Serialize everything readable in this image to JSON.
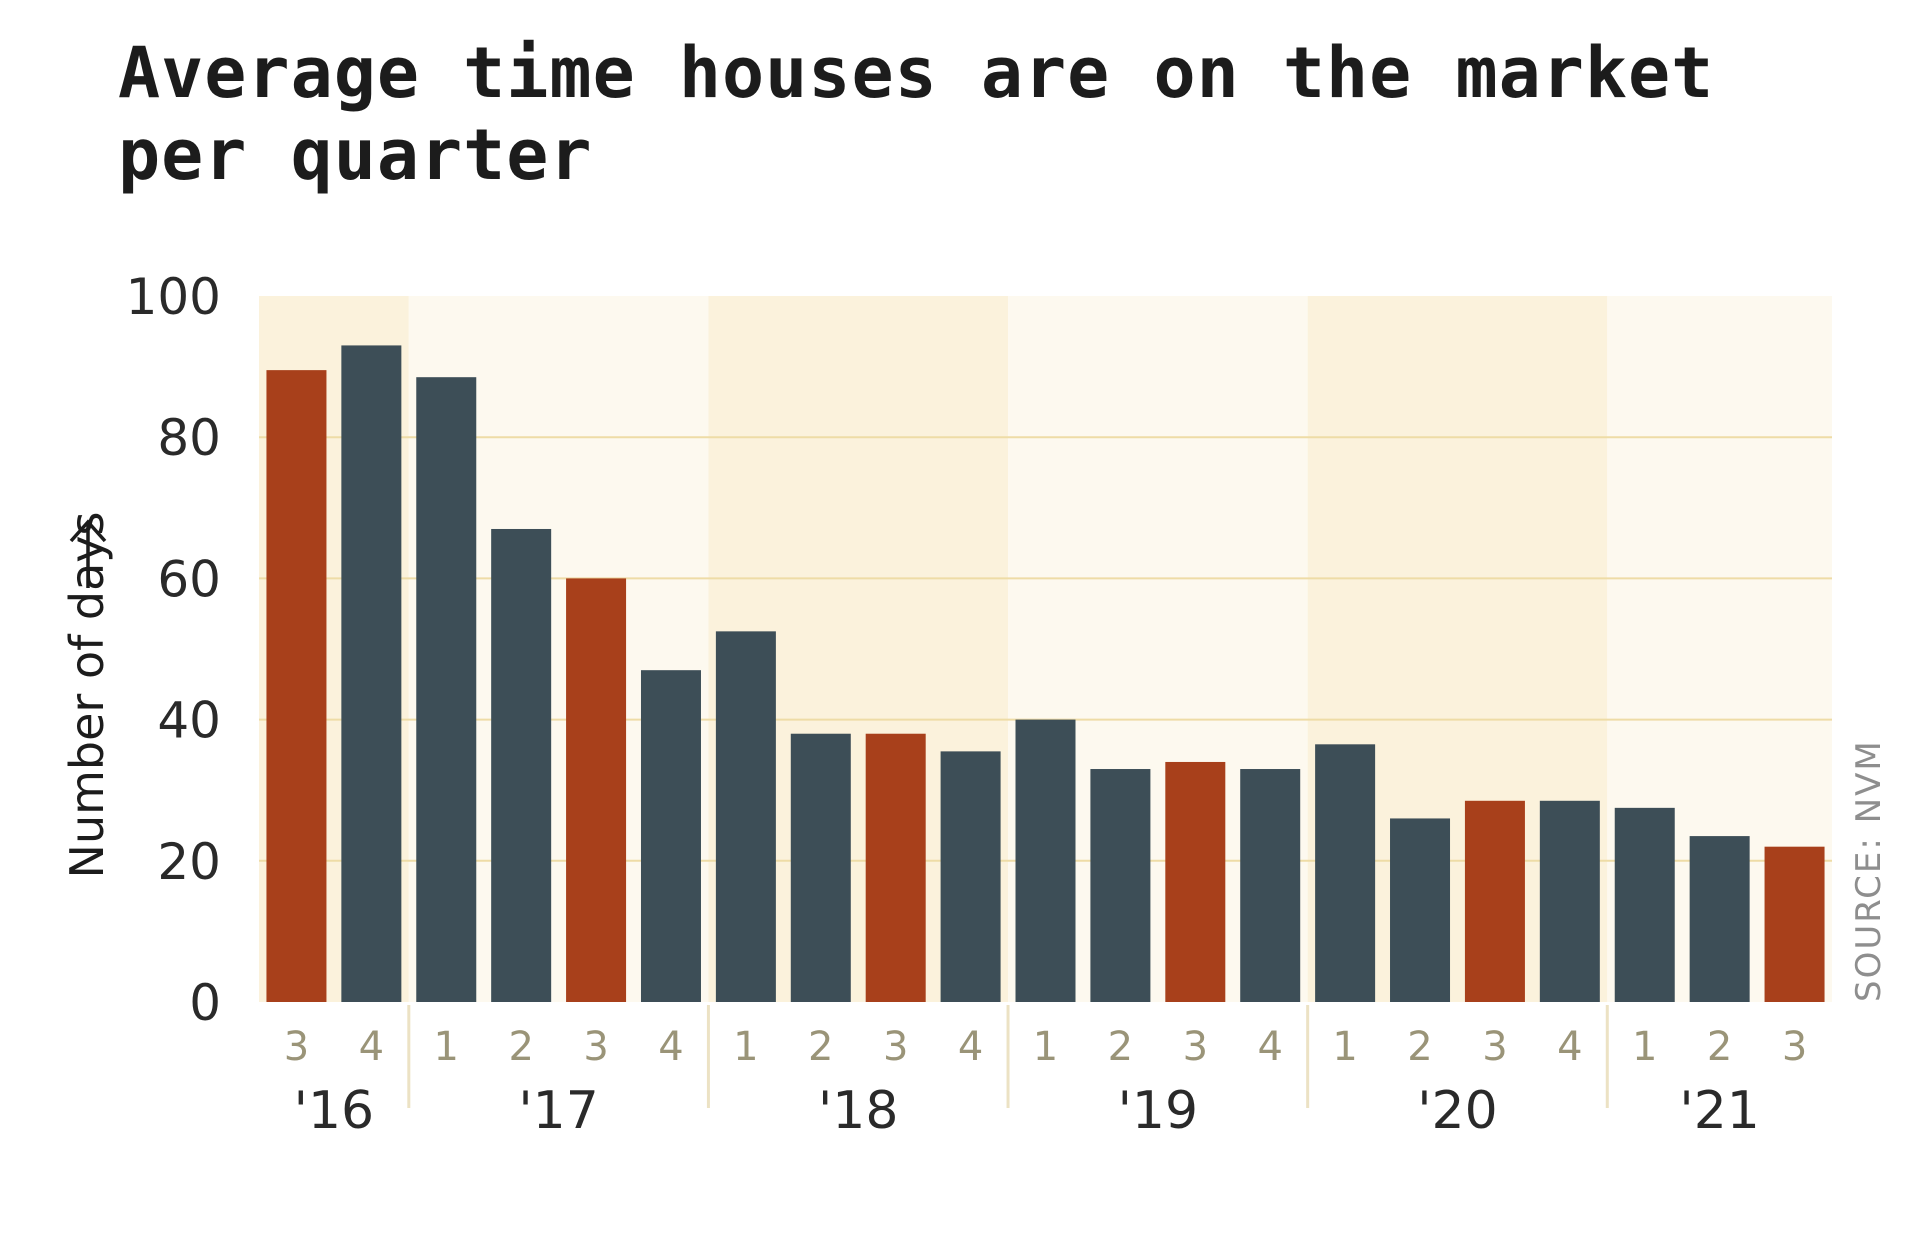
{
  "title": "Average time houses are on the market per quarter",
  "source": "SOURCE: NVM",
  "colors": {
    "highlight": "#a8401b",
    "normal": "#3d4e57",
    "band_a": "#fbf2dc",
    "band_b": "#fdf9ef",
    "grid": "#eedca6"
  },
  "chart_data": {
    "type": "bar",
    "ylabel": "Number of days",
    "ylim": [
      0,
      100
    ],
    "yticks": [
      0,
      20,
      40,
      60,
      80,
      100
    ],
    "grid": true,
    "categories": [
      "3",
      "4",
      "1",
      "2",
      "3",
      "4",
      "1",
      "2",
      "3",
      "4",
      "1",
      "2",
      "3",
      "4",
      "1",
      "2",
      "3",
      "4",
      "1",
      "2",
      "3"
    ],
    "years": [
      {
        "label": "'16",
        "quarters": 2
      },
      {
        "label": "'17",
        "quarters": 4
      },
      {
        "label": "'18",
        "quarters": 4
      },
      {
        "label": "'19",
        "quarters": 4
      },
      {
        "label": "'20",
        "quarters": 4
      },
      {
        "label": "'21",
        "quarters": 3
      }
    ],
    "values": [
      89.5,
      93,
      88.5,
      67,
      60,
      47,
      52.5,
      38,
      38,
      35.5,
      40,
      33,
      34,
      33,
      36.5,
      26,
      28.5,
      28.5,
      27.5,
      23.5,
      22
    ],
    "highlighted": [
      true,
      false,
      false,
      false,
      true,
      false,
      false,
      false,
      true,
      false,
      false,
      false,
      true,
      false,
      false,
      false,
      true,
      false,
      false,
      false,
      true
    ]
  }
}
